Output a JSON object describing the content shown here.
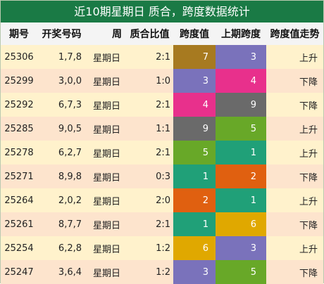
{
  "title": "近10期星期日 质合，跨度数据统计",
  "headers": [
    "期号",
    "开奖号码",
    "周",
    "质合比值",
    "跨度值",
    "上期跨度",
    "跨度值走势"
  ],
  "digit_colors": {
    "1": "#20a078",
    "2": "#e06010",
    "3": "#7a72bb",
    "4": "#e8308c",
    "5": "#68a828",
    "6": "#e0a800",
    "7": "#a77a20",
    "9": "#6a6a6a"
  },
  "rows": [
    {
      "issue": "25306",
      "numbers": "1,7,8",
      "week": "星期日",
      "ratio": "2:1",
      "span": "7",
      "prev_span": "3",
      "trend": "上升"
    },
    {
      "issue": "25299",
      "numbers": "3,0,0",
      "week": "星期日",
      "ratio": "1:0",
      "span": "3",
      "prev_span": "4",
      "trend": "下降"
    },
    {
      "issue": "25292",
      "numbers": "6,7,3",
      "week": "星期日",
      "ratio": "2:1",
      "span": "4",
      "prev_span": "9",
      "trend": "下降"
    },
    {
      "issue": "25285",
      "numbers": "9,0,5",
      "week": "星期日",
      "ratio": "1:1",
      "span": "9",
      "prev_span": "5",
      "trend": "上升"
    },
    {
      "issue": "25278",
      "numbers": "6,2,7",
      "week": "星期日",
      "ratio": "2:1",
      "span": "5",
      "prev_span": "1",
      "trend": "上升"
    },
    {
      "issue": "25271",
      "numbers": "8,9,8",
      "week": "星期日",
      "ratio": "0:3",
      "span": "1",
      "prev_span": "2",
      "trend": "下降"
    },
    {
      "issue": "25264",
      "numbers": "2,0,2",
      "week": "星期日",
      "ratio": "2:0",
      "span": "2",
      "prev_span": "1",
      "trend": "上升"
    },
    {
      "issue": "25261",
      "numbers": "8,7,7",
      "week": "星期日",
      "ratio": "2:1",
      "span": "1",
      "prev_span": "6",
      "trend": "下降"
    },
    {
      "issue": "25254",
      "numbers": "6,2,8",
      "week": "星期日",
      "ratio": "1:2",
      "span": "6",
      "prev_span": "3",
      "trend": "上升"
    },
    {
      "issue": "25247",
      "numbers": "3,6,4",
      "week": "星期日",
      "ratio": "1:2",
      "span": "3",
      "prev_span": "5",
      "trend": "下降"
    }
  ]
}
